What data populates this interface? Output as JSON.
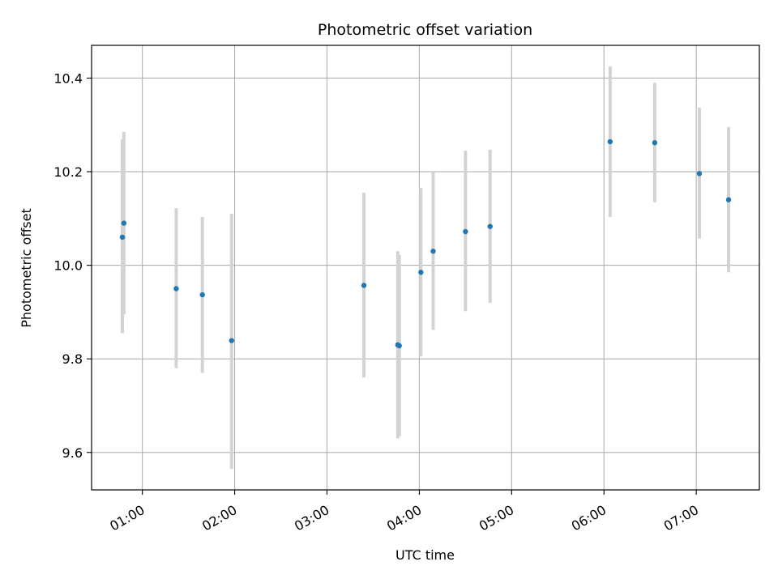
{
  "chart_data": {
    "type": "scatter",
    "title": "Photometric offset variation",
    "xlabel": "UTC time",
    "ylabel": "Photometric offset",
    "x_ticks": [
      "01:00",
      "02:00",
      "03:00",
      "04:00",
      "05:00",
      "06:00",
      "07:00"
    ],
    "y_ticks": [
      "9.6",
      "9.8",
      "10.0",
      "10.2",
      "10.4"
    ],
    "xlim": [
      "00:27",
      "07:41"
    ],
    "ylim": [
      9.52,
      10.47
    ],
    "grid": true,
    "point_color": "#1f77b4",
    "errorbar_color": "#d3d3d3",
    "points": [
      {
        "x": "00:47",
        "y": 10.06,
        "err_low": 9.855,
        "err_high": 10.27
      },
      {
        "x": "00:48",
        "y": 10.09,
        "err_low": 9.895,
        "err_high": 10.285
      },
      {
        "x": "01:22",
        "y": 9.95,
        "err_low": 9.78,
        "err_high": 10.122
      },
      {
        "x": "01:39",
        "y": 9.937,
        "err_low": 9.77,
        "err_high": 10.103
      },
      {
        "x": "01:58",
        "y": 9.839,
        "err_low": 9.565,
        "err_high": 10.11
      },
      {
        "x": "03:24",
        "y": 9.957,
        "err_low": 9.76,
        "err_high": 10.155
      },
      {
        "x": "03:46",
        "y": 9.83,
        "err_low": 9.63,
        "err_high": 10.03
      },
      {
        "x": "03:47",
        "y": 9.828,
        "err_low": 9.635,
        "err_high": 10.022
      },
      {
        "x": "04:01",
        "y": 9.985,
        "err_low": 9.805,
        "err_high": 10.165
      },
      {
        "x": "04:09",
        "y": 10.03,
        "err_low": 9.862,
        "err_high": 10.2
      },
      {
        "x": "04:30",
        "y": 10.072,
        "err_low": 9.902,
        "err_high": 10.245
      },
      {
        "x": "04:46",
        "y": 10.083,
        "err_low": 9.92,
        "err_high": 10.247
      },
      {
        "x": "06:04",
        "y": 10.264,
        "err_low": 10.103,
        "err_high": 10.425
      },
      {
        "x": "06:33",
        "y": 10.262,
        "err_low": 10.135,
        "err_high": 10.39
      },
      {
        "x": "07:02",
        "y": 10.196,
        "err_low": 10.057,
        "err_high": 10.337
      },
      {
        "x": "07:21",
        "y": 10.14,
        "err_low": 9.985,
        "err_high": 10.295
      }
    ]
  }
}
